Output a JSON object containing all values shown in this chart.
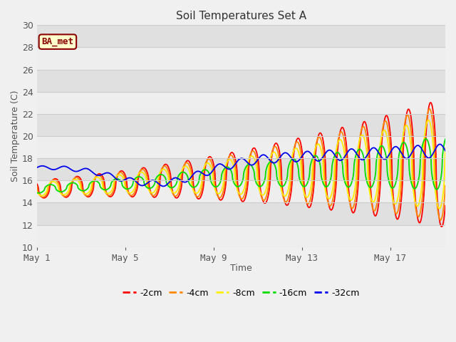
{
  "title": "Soil Temperatures Set A",
  "xlabel": "Time",
  "ylabel": "Soil Temperature (C)",
  "ylim": [
    10,
    30
  ],
  "xlim_days": [
    0,
    18.5
  ],
  "fig_bg_color": "#f0f0f0",
  "plot_bg_color": "#e8e8e8",
  "annotation_text": "BA_met",
  "annotation_bg": "#ffffcc",
  "annotation_border": "#8b0000",
  "annotation_text_color": "#8b0000",
  "series": [
    {
      "label": "-2cm",
      "color": "#ff0000",
      "amp_scale": 1.0,
      "phase_lag": 0.0,
      "depth_damp": 1.0
    },
    {
      "label": "-4cm",
      "color": "#ff8800",
      "amp_scale": 0.9,
      "phase_lag": 0.05,
      "depth_damp": 0.95
    },
    {
      "label": "-8cm",
      "color": "#ffee00",
      "amp_scale": 0.72,
      "phase_lag": 0.1,
      "depth_damp": 0.82
    },
    {
      "label": "-16cm",
      "color": "#00dd00",
      "amp_scale": 0.42,
      "phase_lag": 0.22,
      "depth_damp": 0.6
    },
    {
      "label": "-32cm",
      "color": "#0000ee",
      "amp_scale": 0.07,
      "phase_lag": 0.55,
      "depth_damp": 0.15
    }
  ],
  "tick_labels": [
    "May 1",
    "May 5",
    "May 9",
    "May 13",
    "May 17"
  ],
  "tick_positions": [
    0,
    4,
    8,
    12,
    16
  ],
  "ytick_values": [
    10,
    12,
    14,
    16,
    18,
    20,
    22,
    24,
    26,
    28,
    30
  ],
  "grid_color": "#cccccc",
  "linewidth": 1.3,
  "n_points": 1000
}
